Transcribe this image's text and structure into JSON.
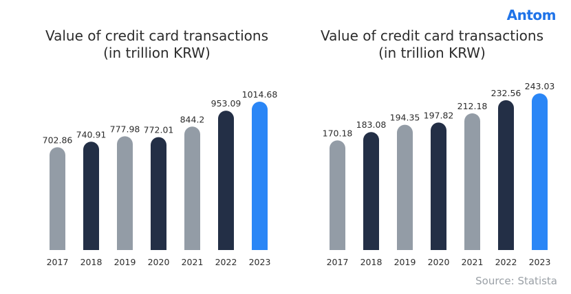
{
  "brand": {
    "logo_text": "Antom"
  },
  "source_text": "Source: Statista",
  "colors": {
    "gray": "#939ca6",
    "navy": "#232f46",
    "blue": "#2a86f6",
    "label": "#2b2b2b"
  },
  "chart_data": [
    {
      "type": "bar",
      "title_line1": "Value of credit card transactions",
      "title_line2": "(in trillion KRW)",
      "categories": [
        "2017",
        "2018",
        "2019",
        "2020",
        "2021",
        "2022",
        "2023"
      ],
      "values": [
        702.86,
        740.91,
        777.98,
        772.01,
        844.2,
        953.09,
        1014.68
      ],
      "value_labels": [
        "702.86",
        "740.91",
        "777.98",
        "772.01",
        "844.2",
        "953.09",
        "1014.68"
      ],
      "bar_colors": [
        "gray",
        "navy",
        "gray",
        "navy",
        "gray",
        "navy",
        "blue"
      ],
      "ylim": [
        0,
        1100
      ],
      "grid": false
    },
    {
      "type": "bar",
      "title_line1": "Value of credit card transactions",
      "title_line2": "(in trillion KRW)",
      "categories": [
        "2017",
        "2018",
        "2019",
        "2020",
        "2021",
        "2022",
        "2023"
      ],
      "values": [
        170.18,
        183.08,
        194.35,
        197.82,
        212.18,
        232.56,
        243.03
      ],
      "value_labels": [
        "170.18",
        "183.08",
        "194.35",
        "197.82",
        "212.18",
        "232.56",
        "243.03"
      ],
      "bar_colors": [
        "gray",
        "navy",
        "gray",
        "navy",
        "gray",
        "navy",
        "blue"
      ],
      "ylim": [
        0,
        260
      ],
      "grid": false
    }
  ]
}
